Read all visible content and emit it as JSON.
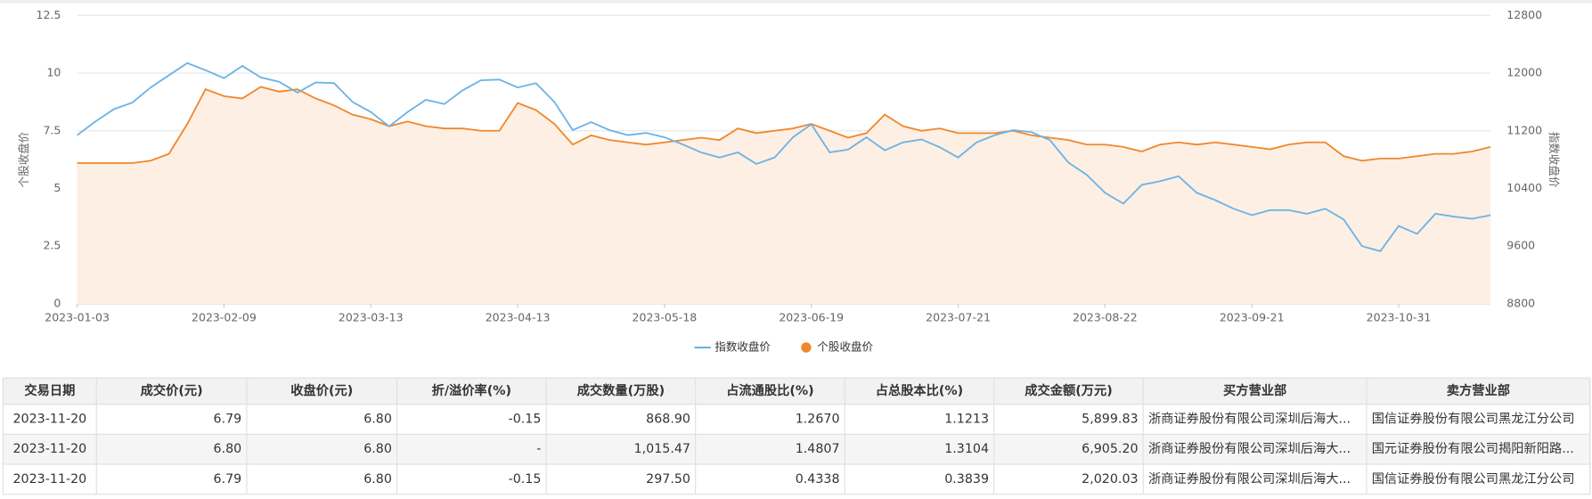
{
  "chart_data": {
    "type": "line",
    "y_label": "个股收盘价",
    "y2_label": "指数收盘价",
    "categories": [
      "2023-01-03",
      null,
      null,
      null,
      null,
      null,
      null,
      null,
      "2023-02-09",
      null,
      null,
      null,
      null,
      null,
      null,
      null,
      "2023-03-13",
      null,
      null,
      null,
      null,
      null,
      null,
      null,
      "2023-04-13",
      null,
      null,
      null,
      null,
      null,
      null,
      null,
      "2023-05-18",
      null,
      null,
      null,
      null,
      null,
      null,
      null,
      "2023-06-19",
      null,
      null,
      null,
      null,
      null,
      null,
      null,
      "2023-07-21",
      null,
      null,
      null,
      null,
      null,
      null,
      null,
      "2023-08-22",
      null,
      null,
      null,
      null,
      null,
      null,
      null,
      "2023-09-21",
      null,
      null,
      null,
      null,
      null,
      null,
      null,
      "2023-10-31",
      null,
      null,
      null,
      null,
      null
    ],
    "series": [
      {
        "name": "指数收盘价",
        "color": "#6cb3e6",
        "axis": "y2",
        "values": [
          11140,
          11330,
          11500,
          11590,
          11800,
          11970,
          12140,
          12040,
          11930,
          12100,
          11940,
          11880,
          11730,
          11870,
          11860,
          11600,
          11460,
          11260,
          11460,
          11630,
          11570,
          11760,
          11900,
          11910,
          11800,
          11860,
          11600,
          11210,
          11320,
          11210,
          11140,
          11170,
          11110,
          11010,
          10900,
          10830,
          10900,
          10740,
          10830,
          11110,
          11290,
          10900,
          10940,
          11110,
          10930,
          11040,
          11080,
          10970,
          10830,
          11040,
          11140,
          11210,
          11180,
          11070,
          10760,
          10590,
          10340,
          10190,
          10450,
          10500,
          10570,
          10340,
          10240,
          10120,
          10030,
          10100,
          10100,
          10050,
          10120,
          9970,
          9600,
          9530,
          9880,
          9770,
          10050,
          10010,
          9980,
          10030
        ]
      },
      {
        "name": "个股收盘价",
        "color": "#f0872a",
        "area_color": "#fdefe4",
        "values": [
          6.1,
          6.1,
          6.1,
          6.1,
          6.2,
          6.5,
          7.8,
          9.3,
          9.0,
          8.9,
          9.4,
          9.2,
          9.3,
          8.9,
          8.6,
          8.2,
          8.0,
          7.7,
          7.9,
          7.7,
          7.6,
          7.6,
          7.5,
          7.5,
          8.7,
          8.4,
          7.8,
          6.9,
          7.3,
          7.1,
          7.0,
          6.9,
          7.0,
          7.1,
          7.2,
          7.1,
          7.6,
          7.4,
          7.5,
          7.6,
          7.8,
          7.5,
          7.2,
          7.4,
          8.2,
          7.7,
          7.5,
          7.6,
          7.4,
          7.4,
          7.4,
          7.5,
          7.3,
          7.2,
          7.1,
          6.9,
          6.9,
          6.8,
          6.6,
          6.9,
          7.0,
          6.9,
          7.0,
          6.9,
          6.8,
          6.7,
          6.9,
          7.0,
          7.0,
          6.4,
          6.2,
          6.3,
          6.3,
          6.4,
          6.5,
          6.5,
          6.6,
          6.8
        ]
      }
    ],
    "ylim": [
      0,
      12.5
    ],
    "yticks": [
      0,
      2.5,
      5,
      7.5,
      10,
      12.5
    ],
    "y2lim": [
      8800,
      12800
    ],
    "y2ticks": [
      8800,
      9600,
      10400,
      11200,
      12000,
      12800
    ],
    "grid": true,
    "legend": "bottom"
  },
  "table": {
    "header": [
      "交易日期",
      "成交价(元)",
      "收盘价(元)",
      "折/溢价率(%)",
      "成交数量(万股)",
      "占流通股比(%)",
      "占总股本比(%)",
      "成交金额(万元)",
      "买方营业部",
      "卖方营业部"
    ],
    "rows": [
      [
        "2023-11-20",
        "6.79",
        "6.80",
        "-0.15",
        "868.90",
        "1.2670",
        "1.1213",
        "5,899.83",
        "浙商证券股份有限公司深圳后海大...",
        "国信证券股份有限公司黑龙江分公司"
      ],
      [
        "2023-11-20",
        "6.80",
        "6.80",
        "-",
        "1,015.47",
        "1.4807",
        "1.3104",
        "6,905.20",
        "浙商证券股份有限公司深圳后海大...",
        "国元证券股份有限公司揭阳新阳路..."
      ],
      [
        "2023-11-20",
        "6.79",
        "6.80",
        "-0.15",
        "297.50",
        "0.4338",
        "0.3839",
        "2,020.03",
        "浙商证券股份有限公司深圳后海大...",
        "国信证券股份有限公司黑龙江分公司"
      ]
    ]
  }
}
